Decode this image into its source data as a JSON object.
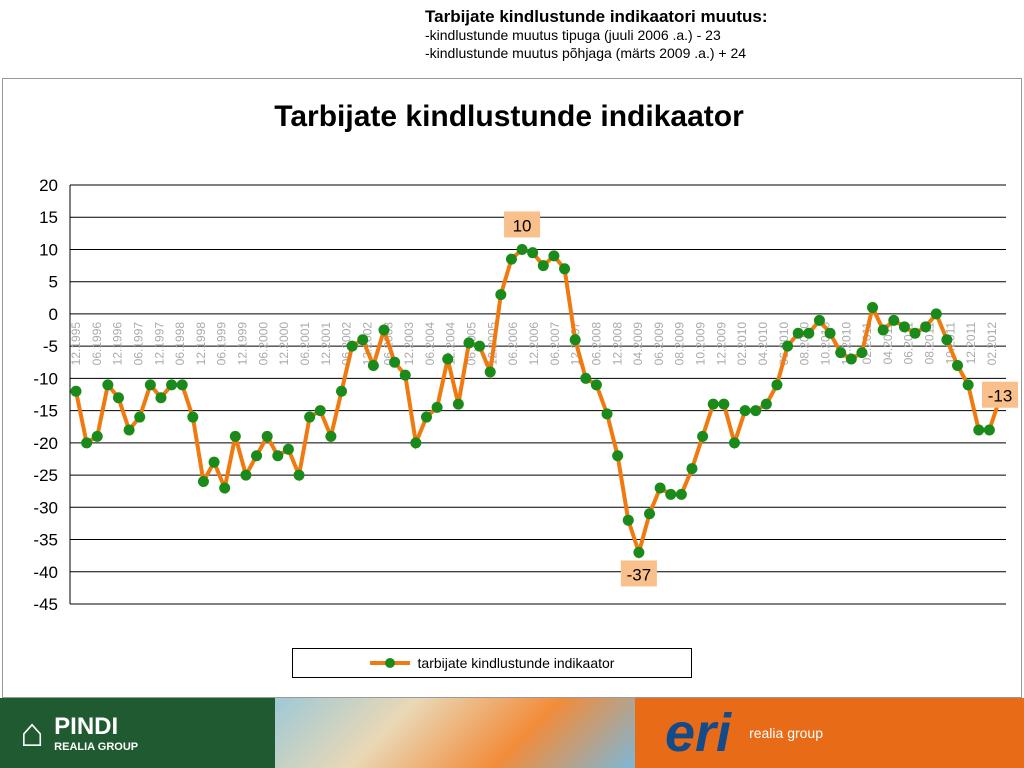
{
  "header": {
    "title": "Tarbijate kindlustunde indikaatori muutus:",
    "line1": "-kindlustunde muutus tipuga (juuli 2006 .a.) - 23",
    "line2": "-kindlustunde muutus põhjaga (märts 2009 .a.) + 24"
  },
  "chart_data": {
    "type": "line",
    "title": "Tarbijate kindlustunde indikaator",
    "ylim": [
      -45,
      20
    ],
    "yticks": [
      20,
      15,
      10,
      5,
      0,
      -5,
      -10,
      -15,
      -20,
      -25,
      -30,
      -35,
      -40,
      -45
    ],
    "series": [
      {
        "name": "tarbijate kindlustunde indikaator",
        "color": "#f07a10",
        "marker": "#1a8a1a",
        "values": [
          -12,
          -20,
          -19,
          -11,
          -13,
          -18,
          -16,
          -11,
          -13,
          -11,
          -11,
          -16,
          -26,
          -23,
          -27,
          -19,
          -25,
          -22,
          -19,
          -22,
          -21,
          -25,
          -16,
          -15,
          -19,
          -12,
          -5,
          -4,
          -8,
          -2.5,
          -7.5,
          -9.5,
          -20,
          -16,
          -14.5,
          -7,
          -14,
          -4.5,
          -5,
          -9,
          3,
          8.5,
          10,
          9.5,
          7.5,
          9,
          7,
          -4,
          -10,
          -11,
          -15.5,
          -22,
          -32,
          -37,
          -31,
          -27,
          -28,
          -28,
          -24,
          -19,
          -14,
          -14,
          -20,
          -15,
          -15,
          -14,
          -11,
          -5,
          -3,
          -3,
          -1,
          -3,
          -6,
          -7,
          -6,
          1,
          -2.5,
          -1,
          -2,
          -3,
          -2,
          0,
          -4,
          -8,
          -11,
          -18,
          -18,
          -13
        ]
      }
    ],
    "xlabels": [
      "12.1995",
      "06.1996",
      "12.1996",
      "06.1997",
      "12.1997",
      "06.1998",
      "12.1998",
      "06.1999",
      "12.1999",
      "06.2000",
      "12.2000",
      "06.2001",
      "12.2001",
      "06.2002",
      "12.2002",
      "06.2003",
      "12.2003",
      "06.2004",
      "12.2004",
      "06.2005",
      "12.2005",
      "06.2006",
      "12.2006",
      "06.2007",
      "12.2007",
      "06.2008",
      "12.2008",
      "04.2009",
      "06.2009",
      "08.2009",
      "10.2009",
      "12.2009",
      "02.2010",
      "04.2010",
      "06.2010",
      "08.2010",
      "10.2010",
      "12.2010",
      "02.2011",
      "04.2011",
      "06.2011",
      "08.2011",
      "10.2011",
      "12.2011",
      "02.2012"
    ],
    "annotations": [
      {
        "text": "10",
        "index": 42
      },
      {
        "text": "-37",
        "index": 53
      },
      {
        "text": "-13",
        "index": 87
      }
    ]
  },
  "footer": {
    "pindi": "PINDI",
    "pindi_sub": "REALIA GROUP",
    "eri": "eri",
    "eri_sub": "realia group"
  }
}
